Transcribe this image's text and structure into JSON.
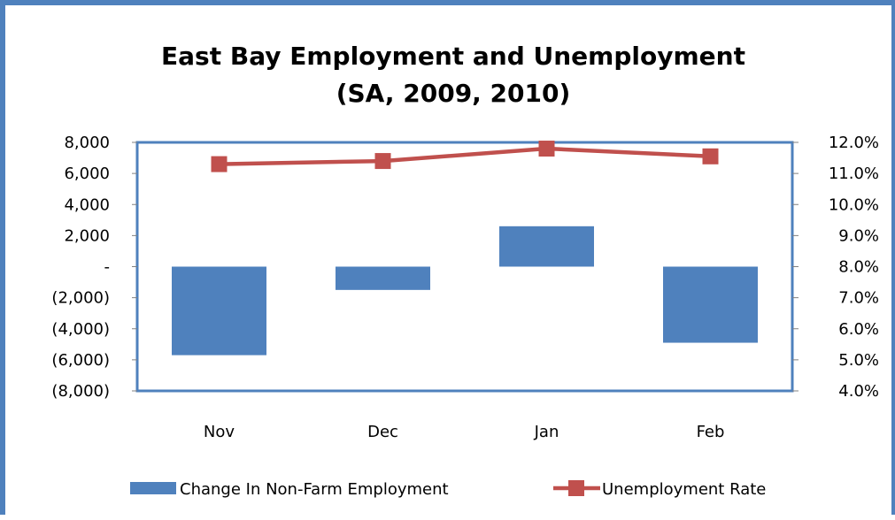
{
  "colors": {
    "frame": "#4f81bd",
    "bar": "#4f81bd",
    "line": "#c0504d",
    "axis": "#808080"
  },
  "chart_data": {
    "type": "bar",
    "title": [
      "East Bay Employment and Unemployment",
      "(SA, 2009, 2010)"
    ],
    "categories": [
      "Nov",
      "Dec",
      "Jan",
      "Feb"
    ],
    "series": [
      {
        "name": "Change In Non-Farm Employment",
        "type": "bar",
        "axis": "left",
        "values": [
          -5700,
          -1500,
          2600,
          -4900
        ]
      },
      {
        "name": "Unemployment Rate",
        "type": "line",
        "axis": "right",
        "values": [
          11.3,
          11.4,
          11.8,
          11.55
        ]
      }
    ],
    "y_left": {
      "range": [
        -8000,
        8000
      ],
      "ticks": [
        {
          "value": 8000,
          "label": "8,000"
        },
        {
          "value": 6000,
          "label": "6,000"
        },
        {
          "value": 4000,
          "label": "4,000"
        },
        {
          "value": 2000,
          "label": "2,000"
        },
        {
          "value": 0,
          "label": "-"
        },
        {
          "value": -2000,
          "label": "(2,000)"
        },
        {
          "value": -4000,
          "label": "(4,000)"
        },
        {
          "value": -6000,
          "label": "(6,000)"
        },
        {
          "value": -8000,
          "label": "(8,000)"
        }
      ]
    },
    "y_right": {
      "range": [
        4.0,
        12.0
      ],
      "ticks": [
        {
          "value": 12.0,
          "label": "12.0%"
        },
        {
          "value": 11.0,
          "label": "11.0%"
        },
        {
          "value": 10.0,
          "label": "10.0%"
        },
        {
          "value": 9.0,
          "label": "9.0%"
        },
        {
          "value": 8.0,
          "label": "8.0%"
        },
        {
          "value": 7.0,
          "label": "7.0%"
        },
        {
          "value": 6.0,
          "label": "6.0%"
        },
        {
          "value": 5.0,
          "label": "5.0%"
        },
        {
          "value": 4.0,
          "label": "4.0%"
        }
      ]
    },
    "grid": false,
    "legend_position": "bottom"
  }
}
